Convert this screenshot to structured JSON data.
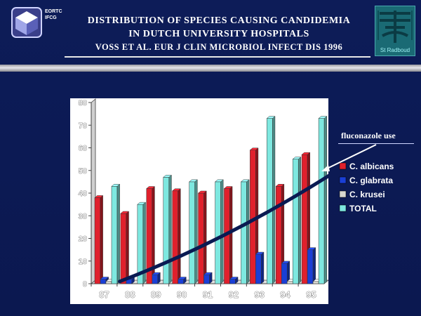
{
  "header": {
    "line1": "DISTRIBUTION OF SPECIES CAUSING CANDIDEMIA",
    "line2": "IN DUTCH UNIVERSITY HOSPITALS",
    "line3": "VOSS ET AL. EUR J CLIN MICROBIOL INFECT DIS 1996"
  },
  "logos": {
    "left_text_1": "EORTC",
    "left_text_2": "IFCG",
    "right_text": "St Radboud"
  },
  "annotation": {
    "text": "fluconazole use"
  },
  "colors": {
    "background": "#0c1a52",
    "c_albicans": "#e0202c",
    "c_glabrata": "#1a3fd6",
    "c_krusei": "#d8d8d0",
    "total": "#7ee8e0",
    "trend_arrow": "#0a1a52"
  },
  "chart_data": {
    "type": "bar",
    "categories": [
      "87",
      "88",
      "89",
      "90",
      "91",
      "92",
      "93",
      "94",
      "95"
    ],
    "series": [
      {
        "name": "C. albicans",
        "values": [
          38,
          31,
          42,
          41,
          40,
          42,
          59,
          43,
          57
        ]
      },
      {
        "name": "C. glabrata",
        "values": [
          2,
          2,
          4,
          2,
          4,
          2,
          13,
          9,
          15
        ]
      },
      {
        "name": "C. krusei",
        "values": [
          1,
          0,
          0,
          0,
          0,
          0,
          0,
          1,
          1
        ]
      },
      {
        "name": "TOTAL",
        "values": [
          43,
          35,
          47,
          45,
          45,
          45,
          73,
          55,
          73
        ]
      }
    ],
    "yticks": [
      "0",
      "10",
      "20",
      "30",
      "40",
      "50",
      "60",
      "70",
      "80"
    ],
    "ylim": [
      0,
      80
    ],
    "legend_position": "right",
    "trend_line": {
      "from": [
        87.6,
        1
      ],
      "to": [
        96,
        50
      ]
    },
    "grid": false,
    "style": "3d"
  }
}
